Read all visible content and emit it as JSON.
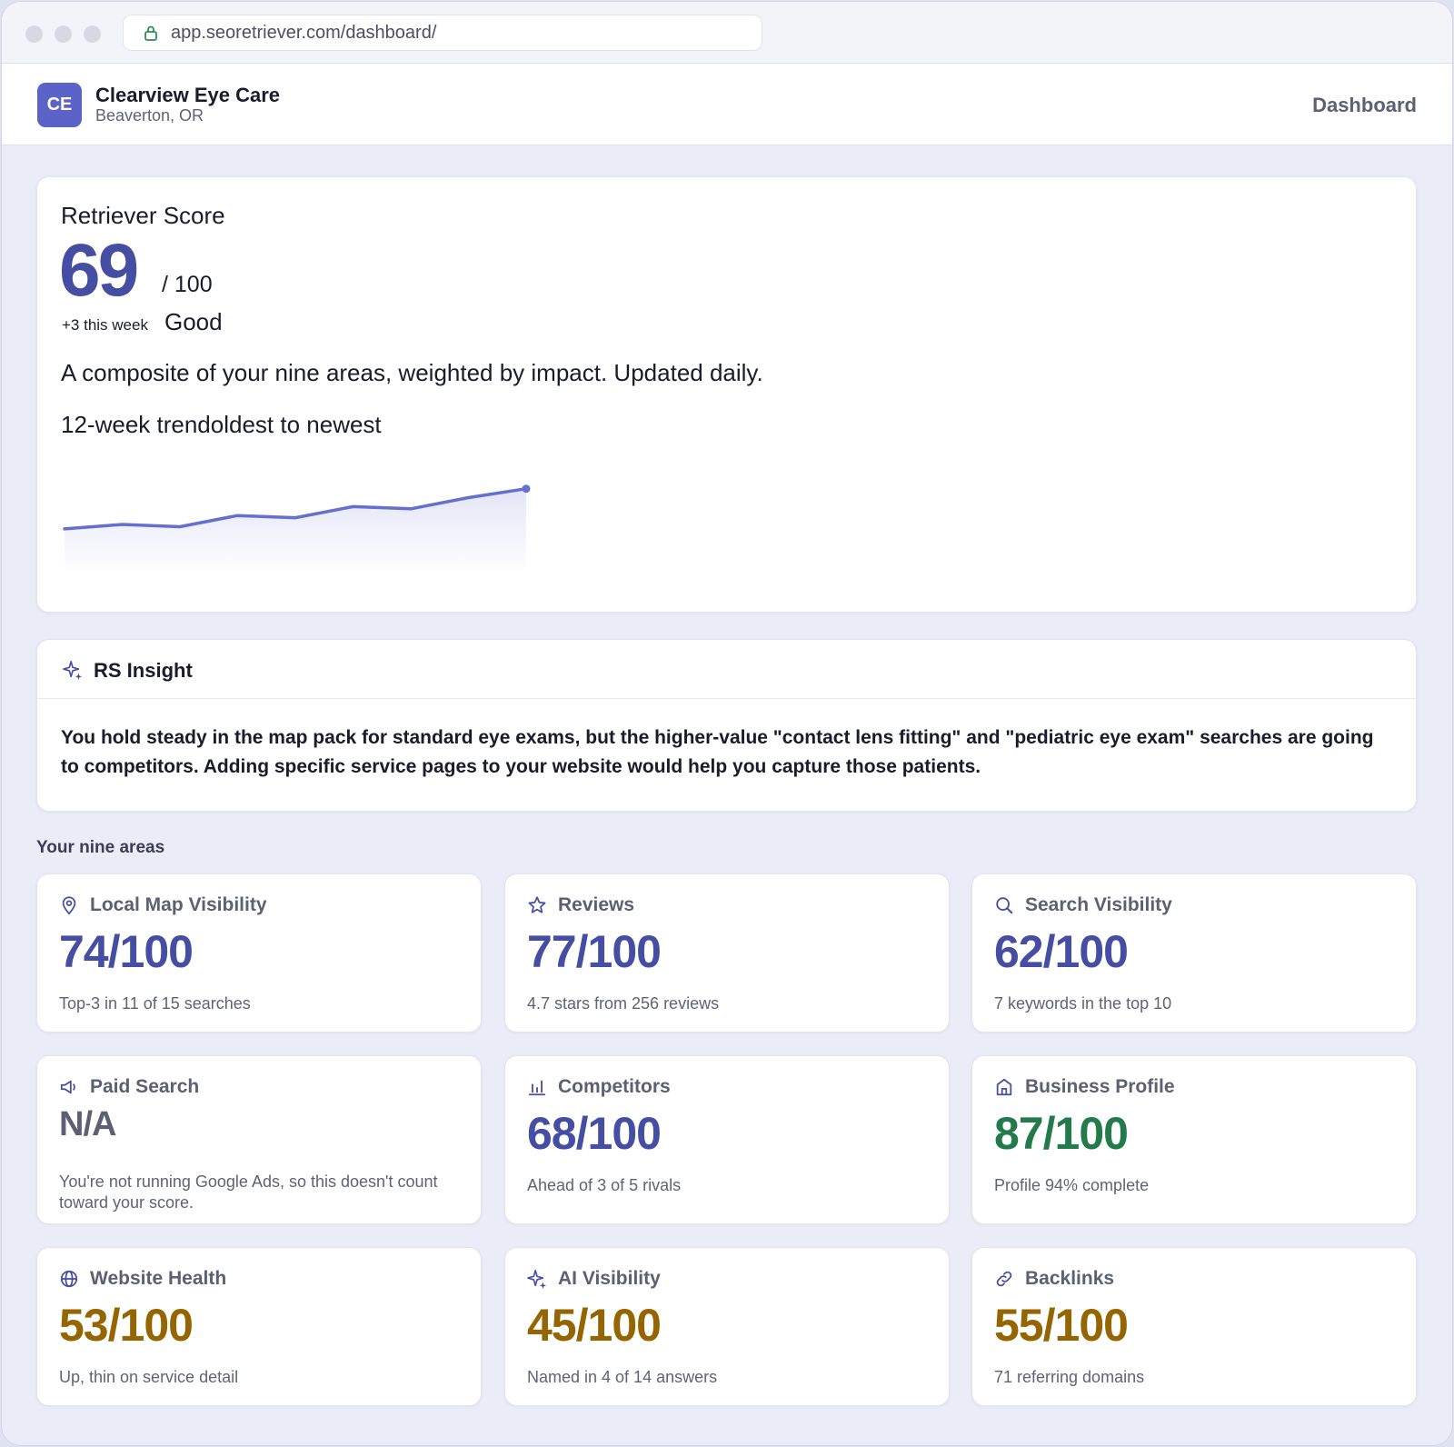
{
  "browser": {
    "url": "app.seoretriever.com/dashboard/"
  },
  "header": {
    "avatar_initials": "CE",
    "business_name": "Clearview Eye Care",
    "location": "Beaverton, OR",
    "nav_dashboard": "Dashboard"
  },
  "score": {
    "label": "Retriever Score",
    "value": "69",
    "max": "/ 100",
    "delta": "+3 this week",
    "grade": "Good",
    "description": "A composite of your nine areas, weighted by impact. Updated daily.",
    "trend_label": "12-week trendoldest to newest"
  },
  "chart_data": {
    "type": "line",
    "x": [
      1,
      2,
      3,
      4,
      5,
      6,
      7,
      8,
      9
    ],
    "values": [
      60,
      61,
      60.5,
      63,
      62.5,
      65,
      64.5,
      67,
      69
    ],
    "ylim": [
      50,
      72
    ],
    "color": "#646fcf"
  },
  "insight": {
    "title": "RS Insight",
    "text": "You hold steady in the map pack for standard eye exams, but the higher-value \"contact lens fitting\" and \"pediatric eye exam\" searches are going to competitors. Adding specific service pages to your website would help you capture those patients."
  },
  "areas": {
    "title": "Your nine areas",
    "items": [
      {
        "name": "Local Map Visibility",
        "icon": "map-pin-icon",
        "score": "74/100",
        "note": "Top-3 in 11 of 15 searches"
      },
      {
        "name": "Reviews",
        "icon": "star-icon",
        "score": "77/100",
        "note": "4.7 stars from 256 reviews"
      },
      {
        "name": "Search Visibility",
        "icon": "search-icon",
        "score": "62/100",
        "note": "7 keywords in the top 10"
      },
      {
        "name": "Paid Search",
        "icon": "megaphone-icon",
        "score": "N/A",
        "note": "You're not running Google Ads, so this doesn't count toward your score."
      },
      {
        "name": "Competitors",
        "icon": "bar-chart-icon",
        "score": "68/100",
        "note": "Ahead of 3 of 5 rivals"
      },
      {
        "name": "Business Profile",
        "icon": "storefront-icon",
        "score": "87/100",
        "note": "Profile 94% complete"
      },
      {
        "name": "Website Health",
        "icon": "globe-icon",
        "score": "53/100",
        "note": "Up, thin on service detail"
      },
      {
        "name": "AI Visibility",
        "icon": "sparkle-icon",
        "score": "45/100",
        "note": "Named in 4 of 14 answers"
      },
      {
        "name": "Backlinks",
        "icon": "link-icon",
        "score": "55/100",
        "note": "71 referring domains"
      }
    ]
  },
  "colors": {
    "accent": "#454ea3",
    "good": "#237a4b",
    "warn": "#946500",
    "muted": "#5b6072"
  }
}
